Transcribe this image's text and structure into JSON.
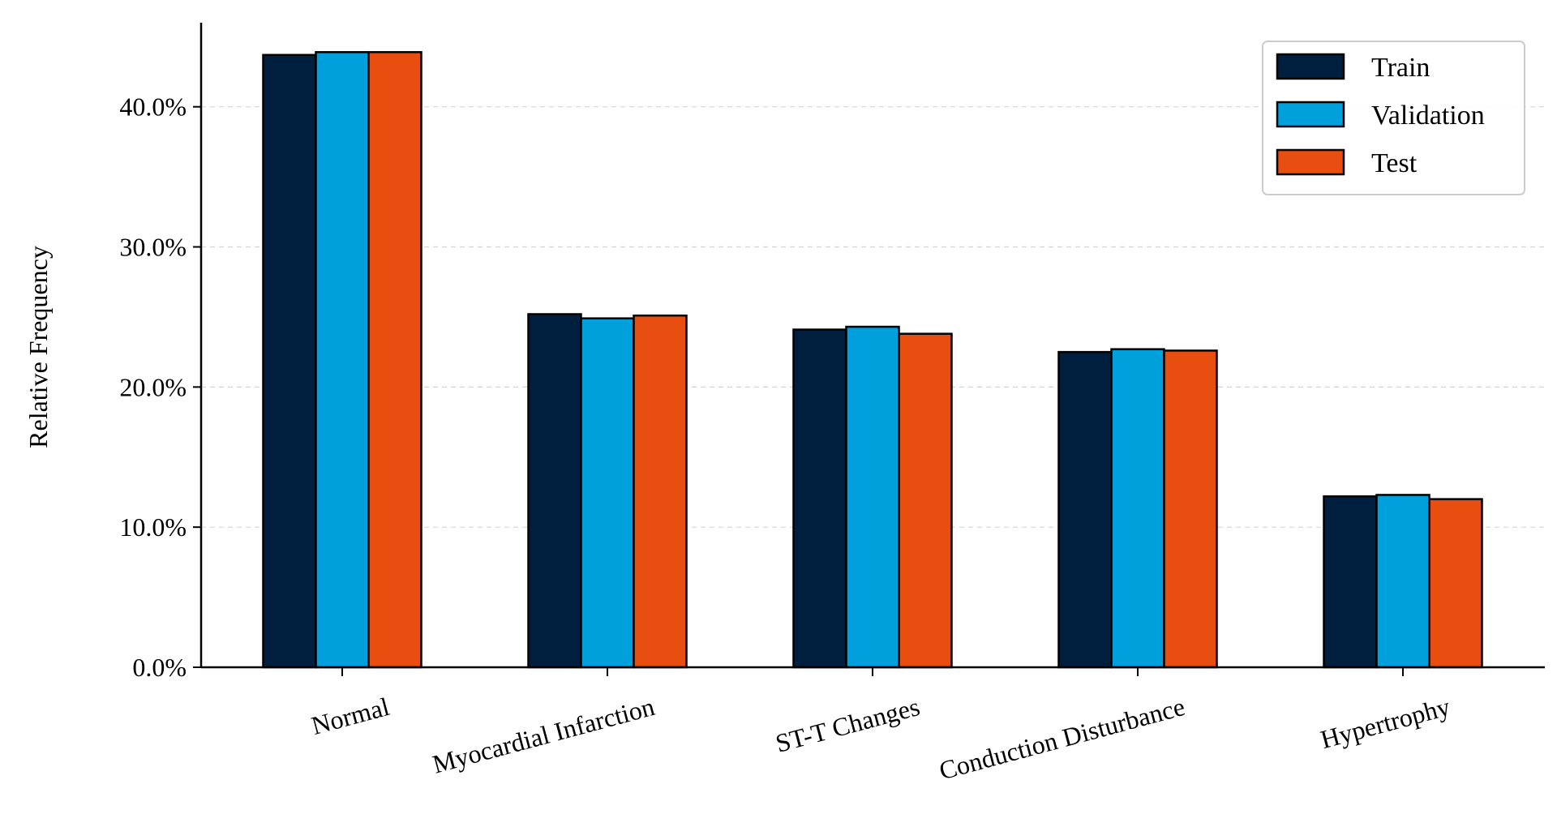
{
  "chart_data": {
    "type": "bar",
    "categories": [
      "Normal",
      "Myocardial Infarction",
      "ST-T Changes",
      "Conduction Disturbance",
      "Hypertrophy"
    ],
    "series": [
      {
        "name": "Train",
        "color": "#001f3f",
        "values": [
          43.7,
          25.2,
          24.1,
          22.5,
          12.2
        ]
      },
      {
        "name": "Validation",
        "color": "#00a0dc",
        "values": [
          43.9,
          24.9,
          24.3,
          22.7,
          12.3
        ]
      },
      {
        "name": "Test",
        "color": "#e84e10",
        "values": [
          43.9,
          25.1,
          23.8,
          22.6,
          12.0
        ]
      }
    ],
    "xlabel": "",
    "ylabel": "Relative Frequency",
    "ylim": [
      0,
      46
    ],
    "yticks": [
      0,
      10,
      20,
      30,
      40
    ],
    "ytick_labels": [
      "0.0%",
      "10.0%",
      "20.0%",
      "30.0%",
      "40.0%"
    ],
    "grid": "horizontal dashed",
    "legend_position": "top-right"
  }
}
